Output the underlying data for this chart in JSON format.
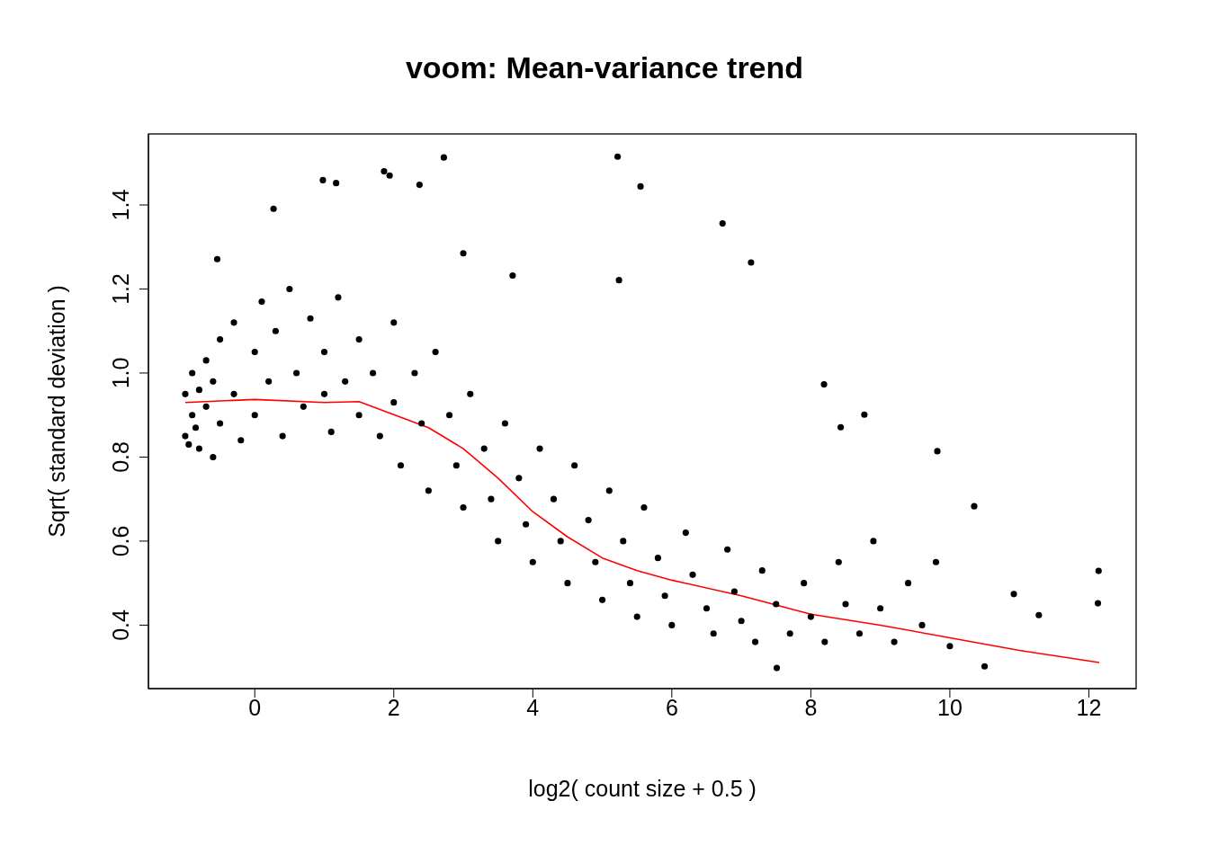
{
  "chart_data": {
    "type": "scatter",
    "title": "voom: Mean-variance trend",
    "xlabel": "log2( count size + 0.5 )",
    "ylabel": "Sqrt( standard deviation )",
    "xlim": [
      -1.53,
      12.68
    ],
    "ylim": [
      0.249,
      1.569
    ],
    "xticks": [
      0,
      2,
      4,
      6,
      8,
      10,
      12
    ],
    "yticks": [
      0.4,
      0.6,
      0.8,
      {
        "value": 1,
        "label": "1.0"
      },
      1.2,
      1.4
    ],
    "marker": "circle",
    "grid": false,
    "series": [
      {
        "color": "#000000",
        "x": [
          -1,
          -1,
          -0.95,
          -0.9,
          -0.9,
          -0.85,
          -0.8,
          -0.8,
          -0.7,
          -0.7,
          -0.6,
          -0.6,
          -0.5,
          -0.5,
          -0.3,
          -0.3,
          -0.2,
          0,
          0,
          0.1,
          0.2,
          0.3,
          0.4,
          0.5,
          0.6,
          0.7,
          0.8,
          1.0,
          1.0,
          1.1,
          1.2,
          1.3,
          1.5,
          1.5,
          1.7,
          1.8,
          2.0,
          2.0,
          2.1,
          2.3,
          2.4,
          2.5,
          2.6,
          2.8,
          2.9,
          3.0,
          3.1,
          3.3,
          3.4,
          3.5,
          3.6,
          3.8,
          3.9,
          4.0,
          4.1,
          4.3,
          4.4,
          4.5,
          4.6,
          4.8,
          4.9,
          5.0,
          5.1,
          5.3,
          5.4,
          5.5,
          5.6,
          5.8,
          5.9,
          6.0,
          6.2,
          6.3,
          6.5,
          6.6,
          6.8,
          6.9,
          7.0,
          7.2,
          7.3,
          7.5,
          7.7,
          7.9,
          8.0,
          8.2,
          8.4,
          8.5,
          8.7,
          8.9,
          9.0,
          9.2,
          9.4,
          9.6,
          9.8,
          10.0,
          5.22,
          2.72,
          1.86,
          1.94,
          0.98,
          1.17,
          2.37,
          5.55,
          6.73,
          7.14,
          12.14,
          12.13,
          10.5,
          7.51,
          10.92,
          11.28,
          10.35,
          8.77,
          8.19,
          9.82,
          8.43,
          5.24,
          3.71,
          -0.54,
          0.27,
          3.0
        ],
        "values": [
          0.85,
          0.95,
          0.83,
          0.9,
          1.0,
          0.87,
          0.96,
          0.82,
          0.92,
          1.03,
          0.8,
          0.98,
          1.08,
          0.88,
          1.12,
          0.95,
          0.84,
          1.05,
          0.9,
          1.17,
          0.98,
          1.1,
          0.85,
          1.2,
          1.0,
          0.92,
          1.13,
          1.05,
          0.95,
          0.86,
          1.18,
          0.98,
          1.08,
          0.9,
          1.0,
          0.85,
          1.12,
          0.93,
          0.78,
          1.0,
          0.88,
          0.72,
          1.05,
          0.9,
          0.78,
          0.68,
          0.95,
          0.82,
          0.7,
          0.6,
          0.88,
          0.75,
          0.64,
          0.55,
          0.82,
          0.7,
          0.6,
          0.5,
          0.78,
          0.65,
          0.55,
          0.46,
          0.72,
          0.6,
          0.5,
          0.42,
          0.68,
          0.56,
          0.47,
          0.4,
          0.62,
          0.52,
          0.44,
          0.38,
          0.58,
          0.48,
          0.41,
          0.36,
          0.53,
          0.45,
          0.38,
          0.5,
          0.42,
          0.36,
          0.55,
          0.45,
          0.38,
          0.6,
          0.44,
          0.36,
          0.5,
          0.4,
          0.55,
          0.35,
          1.515,
          1.513,
          1.48,
          1.47,
          1.459,
          1.452,
          1.448,
          1.444,
          1.356,
          1.263,
          0.529,
          0.452,
          0.302,
          0.298,
          0.474,
          0.424,
          0.683,
          0.901,
          0.973,
          0.814,
          0.871,
          1.221,
          1.232,
          1.271,
          1.391,
          1.285
        ]
      },
      {
        "type": "line",
        "color": "#ff0000",
        "marker": "none",
        "line_style": "solid",
        "x": [
          -1,
          0,
          1,
          1.5,
          2.5,
          3,
          3.5,
          4,
          4.5,
          5,
          5.5,
          6,
          7,
          8,
          9,
          10,
          11,
          12.15
        ],
        "values": [
          0.93,
          0.937,
          0.93,
          0.932,
          0.87,
          0.82,
          0.75,
          0.67,
          0.61,
          0.56,
          0.53,
          0.507,
          0.47,
          0.426,
          0.4,
          0.37,
          0.34,
          0.311
        ]
      }
    ]
  }
}
